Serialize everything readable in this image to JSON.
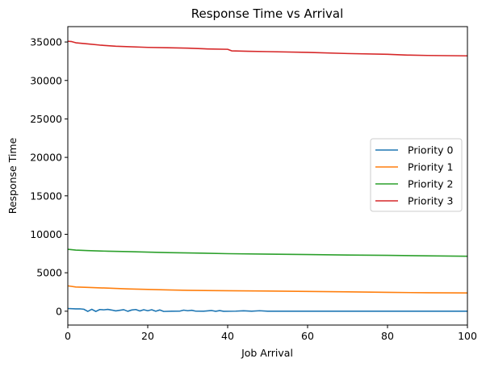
{
  "chart_data": {
    "type": "line",
    "title": "Response Time vs Arrival",
    "xlabel": "Job Arrival",
    "ylabel": "Response Time",
    "xlim": [
      0,
      100
    ],
    "ylim": [
      -1800,
      37000
    ],
    "xticks": [
      0,
      20,
      40,
      60,
      80,
      100
    ],
    "yticks": [
      0,
      5000,
      10000,
      15000,
      20000,
      25000,
      30000,
      35000
    ],
    "grid": false,
    "legend_position": "center-right",
    "series": [
      {
        "name": "Priority 0",
        "color": "#1f77b4",
        "points": [
          [
            0,
            350
          ],
          [
            2,
            300
          ],
          [
            3,
            310
          ],
          [
            4,
            260
          ],
          [
            5,
            -20
          ],
          [
            6,
            250
          ],
          [
            7,
            -30
          ],
          [
            8,
            220
          ],
          [
            9,
            180
          ],
          [
            10,
            240
          ],
          [
            11,
            150
          ],
          [
            12,
            40
          ],
          [
            13,
            120
          ],
          [
            14,
            200
          ],
          [
            15,
            -10
          ],
          [
            16,
            160
          ],
          [
            17,
            220
          ],
          [
            18,
            30
          ],
          [
            19,
            190
          ],
          [
            20,
            60
          ],
          [
            21,
            190
          ],
          [
            22,
            0
          ],
          [
            23,
            160
          ],
          [
            24,
            -30
          ],
          [
            26,
            0
          ],
          [
            28,
            10
          ],
          [
            29,
            140
          ],
          [
            30,
            60
          ],
          [
            31,
            120
          ],
          [
            32,
            10
          ],
          [
            34,
            0
          ],
          [
            36,
            90
          ],
          [
            37,
            -10
          ],
          [
            38,
            80
          ],
          [
            39,
            -10
          ],
          [
            42,
            10
          ],
          [
            44,
            50
          ],
          [
            46,
            0
          ],
          [
            48,
            60
          ],
          [
            50,
            0
          ],
          [
            60,
            0
          ],
          [
            70,
            0
          ],
          [
            80,
            0
          ],
          [
            90,
            0
          ],
          [
            100,
            0
          ]
        ]
      },
      {
        "name": "Priority 1",
        "color": "#ff7f0e",
        "points": [
          [
            0,
            3300
          ],
          [
            2,
            3150
          ],
          [
            5,
            3100
          ],
          [
            10,
            3000
          ],
          [
            15,
            2900
          ],
          [
            20,
            2830
          ],
          [
            25,
            2770
          ],
          [
            30,
            2720
          ],
          [
            40,
            2660
          ],
          [
            50,
            2620
          ],
          [
            60,
            2570
          ],
          [
            70,
            2520
          ],
          [
            80,
            2450
          ],
          [
            90,
            2400
          ],
          [
            100,
            2380
          ]
        ]
      },
      {
        "name": "Priority 2",
        "color": "#2ca02c",
        "points": [
          [
            0,
            8050
          ],
          [
            2,
            7950
          ],
          [
            5,
            7880
          ],
          [
            10,
            7800
          ],
          [
            15,
            7750
          ],
          [
            20,
            7680
          ],
          [
            25,
            7620
          ],
          [
            30,
            7580
          ],
          [
            40,
            7480
          ],
          [
            50,
            7420
          ],
          [
            60,
            7370
          ],
          [
            70,
            7300
          ],
          [
            80,
            7260
          ],
          [
            90,
            7200
          ],
          [
            100,
            7150
          ]
        ]
      },
      {
        "name": "Priority 3",
        "color": "#d62728",
        "points": [
          [
            0,
            35100
          ],
          [
            1,
            35050
          ],
          [
            2,
            34900
          ],
          [
            5,
            34750
          ],
          [
            8,
            34600
          ],
          [
            12,
            34450
          ],
          [
            20,
            34300
          ],
          [
            25,
            34250
          ],
          [
            30,
            34200
          ],
          [
            35,
            34100
          ],
          [
            40,
            34050
          ],
          [
            41,
            33850
          ],
          [
            45,
            33800
          ],
          [
            50,
            33750
          ],
          [
            60,
            33650
          ],
          [
            70,
            33500
          ],
          [
            80,
            33400
          ],
          [
            85,
            33300
          ],
          [
            90,
            33250
          ],
          [
            100,
            33200
          ]
        ]
      }
    ]
  }
}
